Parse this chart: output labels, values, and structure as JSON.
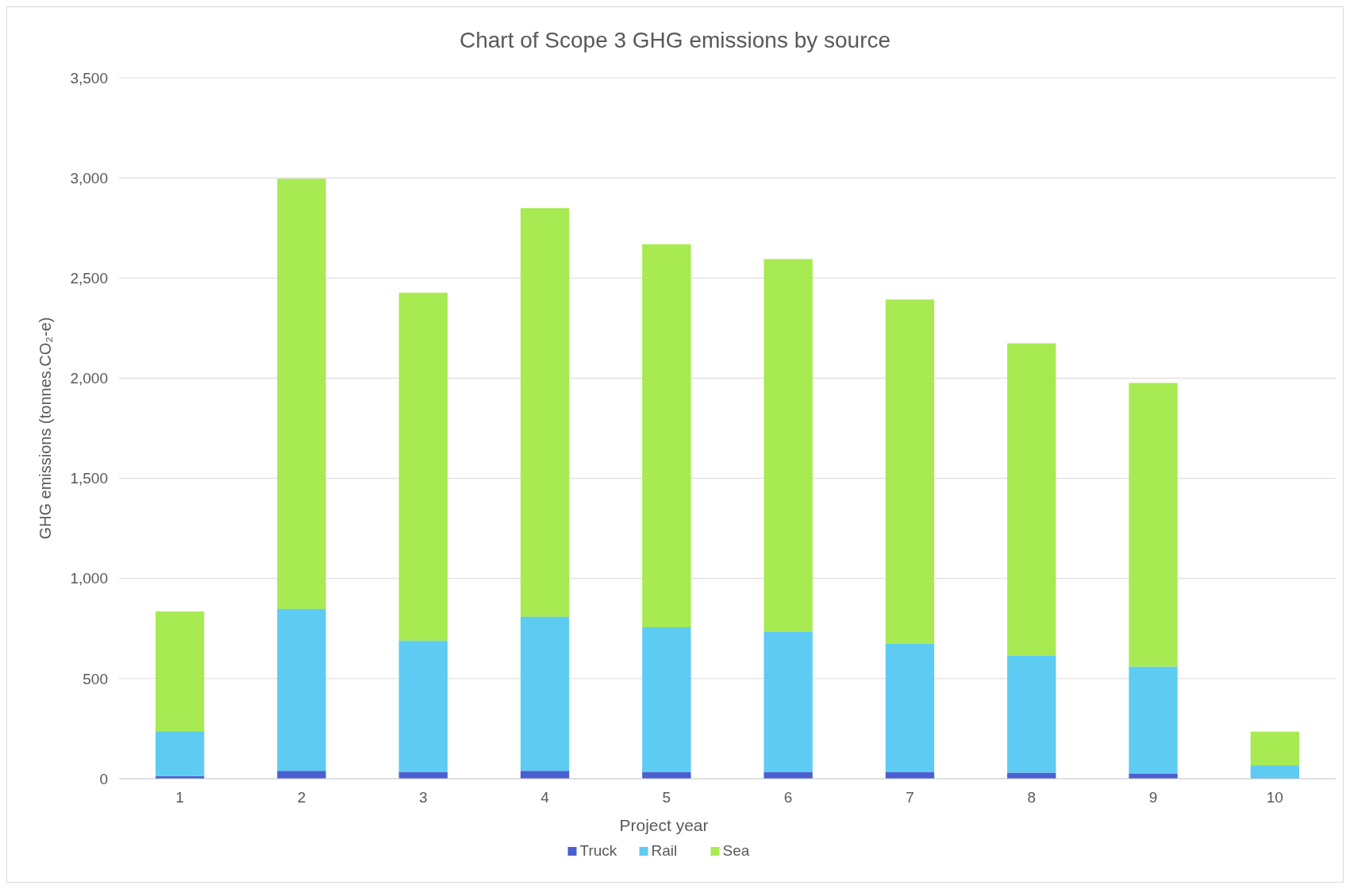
{
  "chart_data": {
    "type": "bar",
    "title": "Chart of Scope 3 GHG emissions by source",
    "xlabel": "Project year",
    "ylabel": "GHG emissions (tonnes.CO₂-e)",
    "categories": [
      "1",
      "2",
      "3",
      "4",
      "5",
      "6",
      "7",
      "8",
      "9",
      "10"
    ],
    "stacked": true,
    "series": [
      {
        "name": "Truck",
        "color": "#4a5fd1",
        "values": [
          13,
          39,
          34,
          39,
          34,
          34,
          34,
          30,
          26,
          null
        ]
      },
      {
        "name": "Rail",
        "color": "#5ecbf2",
        "values": [
          224,
          809,
          655,
          770,
          723,
          702,
          642,
          585,
          534,
          67
        ]
      },
      {
        "name": "Sea",
        "color": "#a8ea52",
        "values": [
          598,
          2148,
          1738,
          2040,
          1912,
          1859,
          1717,
          1559,
          1416,
          168
        ]
      }
    ],
    "ylim": [
      0,
      3500
    ],
    "yticks": [
      0,
      {
        "value": 500,
        "label": "500"
      },
      {
        "value": 1000,
        "label": "1,000"
      },
      {
        "value": 1500,
        "label": "1,500"
      },
      {
        "value": 2000,
        "label": "2,000"
      },
      {
        "value": 2500,
        "label": "2,500"
      },
      {
        "value": 3000,
        "label": "3,000"
      },
      {
        "value": 3500,
        "label": "3,500"
      }
    ],
    "grid": "y",
    "legend": "bottom"
  }
}
